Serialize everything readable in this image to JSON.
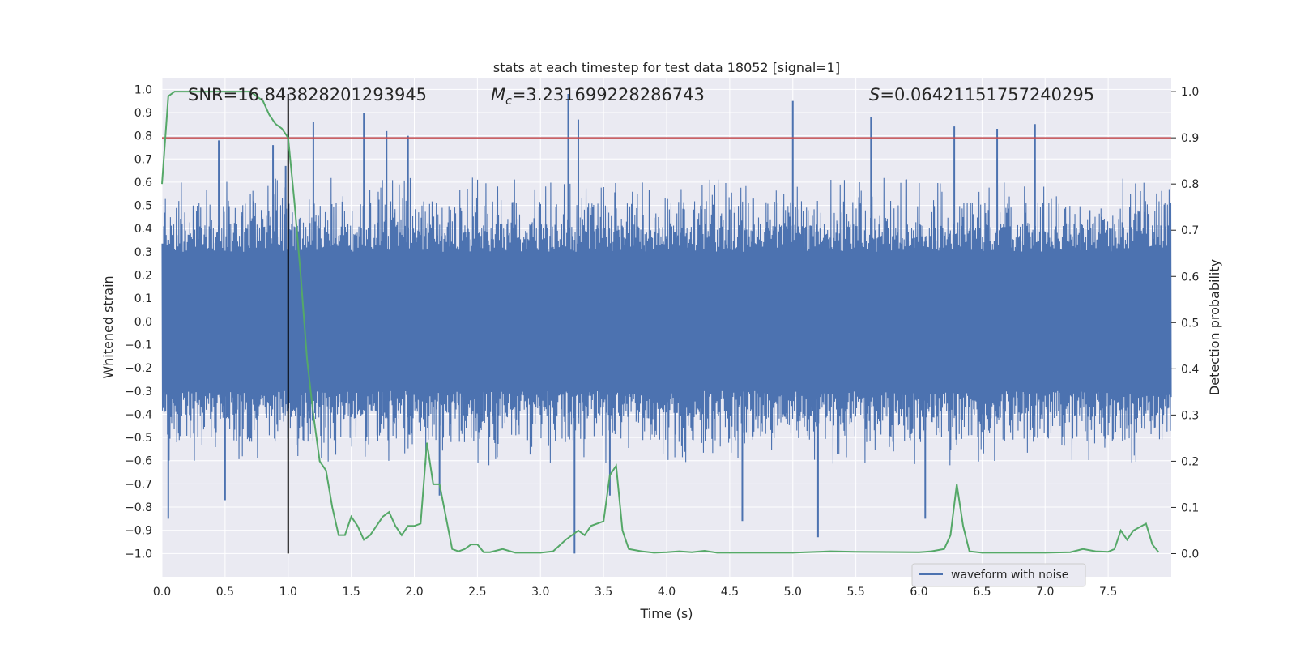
{
  "chart_data": {
    "type": "line",
    "title": "stats at each timestep for test data 18052 [signal=1]",
    "xlabel": "Time (s)",
    "ylabel_left": "Whitened strain",
    "ylabel_right": "Detection probability",
    "xlim": [
      0.0,
      8.0
    ],
    "ylim_left": [
      -1.1,
      1.05
    ],
    "ylim_right": [
      -0.05,
      1.03
    ],
    "x_ticks": [
      0.0,
      0.5,
      1.0,
      1.5,
      2.0,
      2.5,
      3.0,
      3.5,
      4.0,
      4.5,
      5.0,
      5.5,
      6.0,
      6.5,
      7.0,
      7.5
    ],
    "x_tick_labels": [
      "0.0",
      "0.5",
      "1.0",
      "1.5",
      "2.0",
      "2.5",
      "3.0",
      "3.5",
      "4.0",
      "4.5",
      "5.0",
      "5.5",
      "6.0",
      "6.5",
      "7.0",
      "7.5"
    ],
    "y_left_ticks": [
      1.0,
      0.9,
      0.8,
      0.7,
      0.6,
      0.5,
      0.4,
      0.3,
      0.2,
      0.1,
      0.0,
      -0.1,
      -0.2,
      -0.3,
      -0.4,
      -0.5,
      -0.6,
      -0.7,
      -0.8,
      -0.9,
      -1.0
    ],
    "y_left_tick_labels": [
      "1.0",
      "0.9",
      "0.8",
      "0.7",
      "0.6",
      "0.5",
      "0.4",
      "0.3",
      "0.2",
      "0.1",
      "0.0",
      "−0.1",
      "−0.2",
      "−0.3",
      "−0.4",
      "−0.5",
      "−0.6",
      "−0.7",
      "−0.8",
      "−0.9",
      "−1.0"
    ],
    "y_right_ticks": [
      1.0,
      0.9,
      0.8,
      0.7,
      0.6,
      0.5,
      0.4,
      0.3,
      0.2,
      0.1,
      0.0
    ],
    "y_right_tick_labels": [
      "1.0",
      "0.9",
      "0.8",
      "0.7",
      "0.6",
      "0.5",
      "0.4",
      "0.3",
      "0.2",
      "0.1",
      "0.0"
    ],
    "grid": true,
    "annotations": {
      "snr": "SNR=16.843828201293945",
      "mc_symbol": "M",
      "mc_subscript": "c",
      "mc_value": "=3.231699228286743",
      "s_symbol": "S",
      "s_value": "=0.06421151757240295"
    },
    "threshold_probability": 0.9,
    "vertical_marker_time": 1.0,
    "legend": {
      "label": "waveform with noise",
      "location": "lower-right"
    },
    "waveform": {
      "name": "waveform with noise",
      "description": "whitened strain time series, ~8 s, band roughly -0.5..0.55 with spikes up to ~1.0 and down to -1.0",
      "typical_envelope": [
        -0.45,
        0.5
      ],
      "spikes": [
        {
          "t": 0.05,
          "v": -0.85
        },
        {
          "t": 0.45,
          "v": 0.78
        },
        {
          "t": 0.5,
          "v": -0.77
        },
        {
          "t": 0.88,
          "v": 0.76
        },
        {
          "t": 0.98,
          "v": 0.67
        },
        {
          "t": 1.2,
          "v": 0.86
        },
        {
          "t": 1.6,
          "v": 0.9
        },
        {
          "t": 1.78,
          "v": 0.82
        },
        {
          "t": 1.95,
          "v": 0.8
        },
        {
          "t": 2.2,
          "v": -0.75
        },
        {
          "t": 3.22,
          "v": 0.98
        },
        {
          "t": 3.27,
          "v": -1.0
        },
        {
          "t": 3.3,
          "v": 0.87
        },
        {
          "t": 3.55,
          "v": -0.75
        },
        {
          "t": 5.0,
          "v": 0.95
        },
        {
          "t": 5.2,
          "v": -0.93
        },
        {
          "t": 5.62,
          "v": 0.88
        },
        {
          "t": 6.28,
          "v": 0.84
        },
        {
          "t": 6.92,
          "v": 0.85
        },
        {
          "t": 6.62,
          "v": 0.83
        },
        {
          "t": 4.6,
          "v": -0.86
        },
        {
          "t": 6.05,
          "v": -0.85
        }
      ]
    },
    "probability": {
      "name": "detection probability",
      "t": [
        0.0,
        0.05,
        0.1,
        0.2,
        0.3,
        0.4,
        0.5,
        0.6,
        0.7,
        0.75,
        0.8,
        0.85,
        0.9,
        0.95,
        1.0,
        1.05,
        1.1,
        1.15,
        1.2,
        1.25,
        1.3,
        1.35,
        1.4,
        1.45,
        1.5,
        1.55,
        1.6,
        1.65,
        1.7,
        1.75,
        1.8,
        1.85,
        1.9,
        1.95,
        2.0,
        2.05,
        2.1,
        2.15,
        2.2,
        2.25,
        2.3,
        2.35,
        2.4,
        2.45,
        2.5,
        2.55,
        2.6,
        2.7,
        2.8,
        2.9,
        3.0,
        3.1,
        3.2,
        3.3,
        3.35,
        3.4,
        3.5,
        3.55,
        3.6,
        3.65,
        3.7,
        3.8,
        3.9,
        4.0,
        4.1,
        4.2,
        4.3,
        4.4,
        4.5,
        5.0,
        5.1,
        5.3,
        5.5,
        6.0,
        6.1,
        6.2,
        6.25,
        6.3,
        6.35,
        6.4,
        6.5,
        7.0,
        7.2,
        7.3,
        7.4,
        7.5,
        7.55,
        7.6,
        7.65,
        7.7,
        7.8,
        7.85,
        7.9
      ],
      "p": [
        0.8,
        0.99,
        1.0,
        1.0,
        1.0,
        1.0,
        1.0,
        1.0,
        1.0,
        0.99,
        0.98,
        0.95,
        0.93,
        0.92,
        0.9,
        0.76,
        0.6,
        0.42,
        0.3,
        0.2,
        0.18,
        0.1,
        0.04,
        0.04,
        0.08,
        0.06,
        0.03,
        0.04,
        0.06,
        0.08,
        0.09,
        0.06,
        0.04,
        0.06,
        0.06,
        0.065,
        0.24,
        0.15,
        0.15,
        0.08,
        0.01,
        0.005,
        0.01,
        0.02,
        0.02,
        0.003,
        0.003,
        0.01,
        0.002,
        0.002,
        0.002,
        0.005,
        0.03,
        0.05,
        0.04,
        0.06,
        0.07,
        0.17,
        0.19,
        0.05,
        0.01,
        0.005,
        0.002,
        0.003,
        0.005,
        0.003,
        0.006,
        0.002,
        0.002,
        0.002,
        0.003,
        0.005,
        0.004,
        0.003,
        0.005,
        0.01,
        0.04,
        0.15,
        0.06,
        0.005,
        0.002,
        0.002,
        0.003,
        0.01,
        0.005,
        0.004,
        0.01,
        0.05,
        0.03,
        0.05,
        0.065,
        0.02,
        0.003
      ]
    },
    "colors": {
      "plot_background": "#eaeaf2",
      "grid": "#ffffff",
      "waveform": "#4c72b0",
      "probability": "#55a868",
      "threshold": "#c44e52",
      "marker": "#000000",
      "text": "#262626"
    }
  }
}
